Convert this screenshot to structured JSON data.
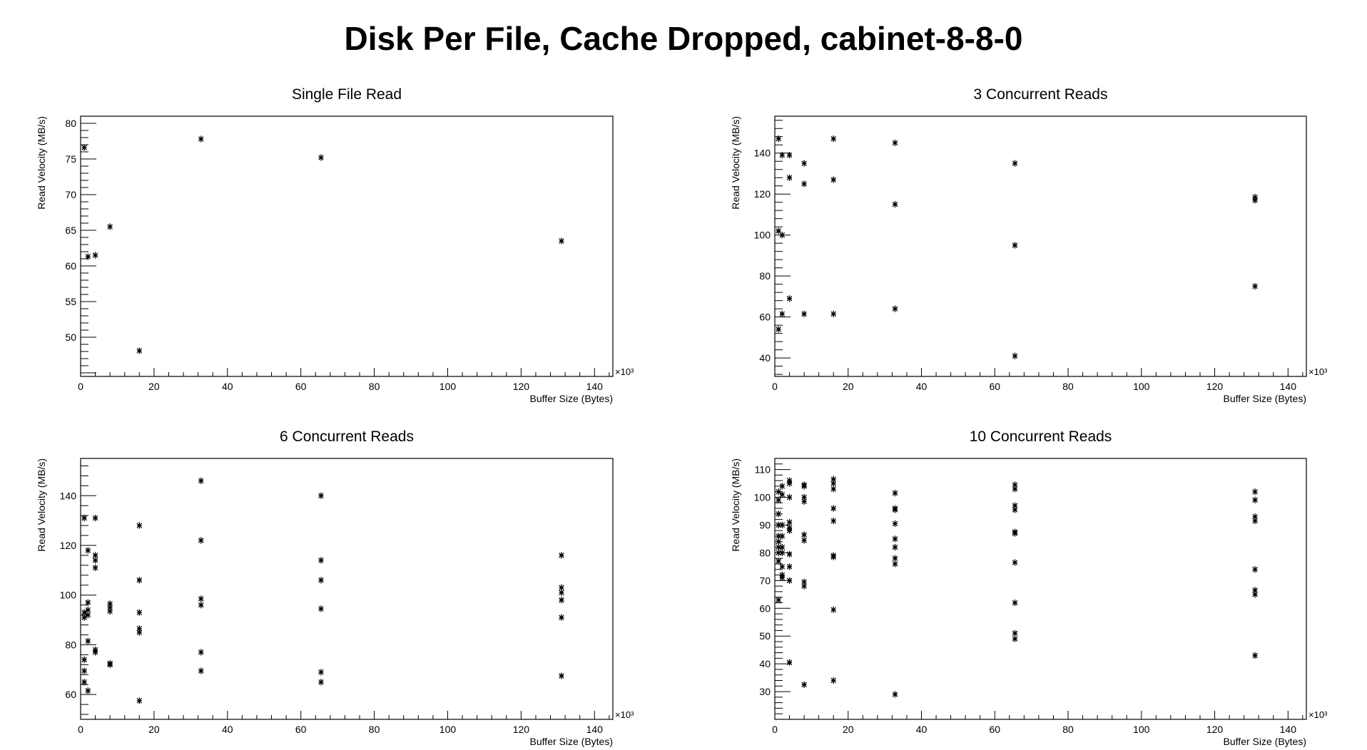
{
  "figure_title": "Disk Per File, Cache Dropped, cabinet-8-8-0",
  "chart_data": [
    {
      "type": "scatter",
      "title": "Single File Read",
      "xlabel": "Buffer Size (Bytes)",
      "ylabel": "Read Velocity (MB/s)",
      "x_exponent_label": "×10³",
      "xlim": [
        0,
        145
      ],
      "ylim": [
        44.5,
        81
      ],
      "xticks": [
        0,
        20,
        40,
        60,
        80,
        100,
        120,
        140
      ],
      "yticks": [
        50,
        55,
        60,
        65,
        70,
        75,
        80
      ],
      "marker": "asterisk",
      "points": [
        {
          "x": 1,
          "y": 76.6
        },
        {
          "x": 2,
          "y": 61.3
        },
        {
          "x": 4,
          "y": 61.5
        },
        {
          "x": 8,
          "y": 65.5
        },
        {
          "x": 16,
          "y": 48.1
        },
        {
          "x": 32.8,
          "y": 77.8
        },
        {
          "x": 65.5,
          "y": 75.2
        },
        {
          "x": 131,
          "y": 63.5
        }
      ]
    },
    {
      "type": "scatter",
      "title": "3 Concurrent Reads",
      "xlabel": "Buffer Size (Bytes)",
      "ylabel": "Read Velocity (MB/s)",
      "x_exponent_label": "×10³",
      "xlim": [
        0,
        145
      ],
      "ylim": [
        31,
        158
      ],
      "xticks": [
        0,
        20,
        40,
        60,
        80,
        100,
        120,
        140
      ],
      "yticks": [
        40,
        60,
        80,
        100,
        120,
        140
      ],
      "marker": "asterisk",
      "points": [
        {
          "x": 1,
          "y": 147
        },
        {
          "x": 1,
          "y": 102
        },
        {
          "x": 1,
          "y": 54
        },
        {
          "x": 2,
          "y": 139
        },
        {
          "x": 2,
          "y": 100
        },
        {
          "x": 2,
          "y": 61.5
        },
        {
          "x": 4,
          "y": 139
        },
        {
          "x": 4,
          "y": 128
        },
        {
          "x": 4,
          "y": 69
        },
        {
          "x": 8,
          "y": 135
        },
        {
          "x": 8,
          "y": 125
        },
        {
          "x": 8,
          "y": 61.5
        },
        {
          "x": 16,
          "y": 147
        },
        {
          "x": 16,
          "y": 127
        },
        {
          "x": 16,
          "y": 61.5
        },
        {
          "x": 32.8,
          "y": 145
        },
        {
          "x": 32.8,
          "y": 115
        },
        {
          "x": 32.8,
          "y": 64
        },
        {
          "x": 65.5,
          "y": 135
        },
        {
          "x": 65.5,
          "y": 95
        },
        {
          "x": 65.5,
          "y": 41
        },
        {
          "x": 131,
          "y": 118.5
        },
        {
          "x": 131,
          "y": 117
        },
        {
          "x": 131,
          "y": 75
        }
      ]
    },
    {
      "type": "scatter",
      "title": "6 Concurrent Reads",
      "xlabel": "Buffer Size (Bytes)",
      "ylabel": "Read Velocity (MB/s)",
      "x_exponent_label": "×10³",
      "xlim": [
        0,
        145
      ],
      "ylim": [
        50,
        155
      ],
      "xticks": [
        0,
        20,
        40,
        60,
        80,
        100,
        120,
        140
      ],
      "yticks": [
        60,
        80,
        100,
        120,
        140
      ],
      "marker": "asterisk",
      "points": [
        {
          "x": 1,
          "y": 131
        },
        {
          "x": 1,
          "y": 93
        },
        {
          "x": 1,
          "y": 91
        },
        {
          "x": 1,
          "y": 74
        },
        {
          "x": 1,
          "y": 69.5
        },
        {
          "x": 1,
          "y": 65
        },
        {
          "x": 2,
          "y": 118
        },
        {
          "x": 2,
          "y": 97
        },
        {
          "x": 2,
          "y": 94
        },
        {
          "x": 2,
          "y": 92
        },
        {
          "x": 2,
          "y": 81.5
        },
        {
          "x": 2,
          "y": 61.5
        },
        {
          "x": 4,
          "y": 131
        },
        {
          "x": 4,
          "y": 116
        },
        {
          "x": 4,
          "y": 114
        },
        {
          "x": 4,
          "y": 111
        },
        {
          "x": 4,
          "y": 78
        },
        {
          "x": 4,
          "y": 77
        },
        {
          "x": 8,
          "y": 96.5
        },
        {
          "x": 8,
          "y": 95
        },
        {
          "x": 8,
          "y": 93.5
        },
        {
          "x": 8,
          "y": 72.5
        },
        {
          "x": 8,
          "y": 72
        },
        {
          "x": 16,
          "y": 128
        },
        {
          "x": 16,
          "y": 106
        },
        {
          "x": 16,
          "y": 93
        },
        {
          "x": 16,
          "y": 86.5
        },
        {
          "x": 16,
          "y": 85
        },
        {
          "x": 16,
          "y": 57.5
        },
        {
          "x": 32.8,
          "y": 146
        },
        {
          "x": 32.8,
          "y": 122
        },
        {
          "x": 32.8,
          "y": 98.5
        },
        {
          "x": 32.8,
          "y": 96
        },
        {
          "x": 32.8,
          "y": 77
        },
        {
          "x": 32.8,
          "y": 69.5
        },
        {
          "x": 65.5,
          "y": 140
        },
        {
          "x": 65.5,
          "y": 114
        },
        {
          "x": 65.5,
          "y": 106
        },
        {
          "x": 65.5,
          "y": 94.5
        },
        {
          "x": 65.5,
          "y": 69
        },
        {
          "x": 65.5,
          "y": 65
        },
        {
          "x": 131,
          "y": 116
        },
        {
          "x": 131,
          "y": 103
        },
        {
          "x": 131,
          "y": 101
        },
        {
          "x": 131,
          "y": 98
        },
        {
          "x": 131,
          "y": 91
        },
        {
          "x": 131,
          "y": 67.5
        }
      ]
    },
    {
      "type": "scatter",
      "title": "10 Concurrent Reads",
      "xlabel": "Buffer Size (Bytes)",
      "ylabel": "Read Velocity (MB/s)",
      "x_exponent_label": "×10³",
      "xlim": [
        0,
        145
      ],
      "ylim": [
        20,
        114
      ],
      "xticks": [
        0,
        20,
        40,
        60,
        80,
        100,
        120,
        140
      ],
      "yticks": [
        30,
        40,
        50,
        60,
        70,
        80,
        90,
        100,
        110
      ],
      "marker": "asterisk",
      "points": [
        {
          "x": 1,
          "y": 102
        },
        {
          "x": 1,
          "y": 99
        },
        {
          "x": 1,
          "y": 94
        },
        {
          "x": 1,
          "y": 90
        },
        {
          "x": 1,
          "y": 86
        },
        {
          "x": 1,
          "y": 84
        },
        {
          "x": 1,
          "y": 82
        },
        {
          "x": 1,
          "y": 80
        },
        {
          "x": 1,
          "y": 77
        },
        {
          "x": 1,
          "y": 63
        },
        {
          "x": 2,
          "y": 104
        },
        {
          "x": 2,
          "y": 101
        },
        {
          "x": 2,
          "y": 90
        },
        {
          "x": 2,
          "y": 86
        },
        {
          "x": 2,
          "y": 82
        },
        {
          "x": 2,
          "y": 80
        },
        {
          "x": 2,
          "y": 75
        },
        {
          "x": 2,
          "y": 72
        },
        {
          "x": 2,
          "y": 71
        },
        {
          "x": 4,
          "y": 106
        },
        {
          "x": 4,
          "y": 105
        },
        {
          "x": 4,
          "y": 100
        },
        {
          "x": 4,
          "y": 91
        },
        {
          "x": 4,
          "y": 89
        },
        {
          "x": 4,
          "y": 88
        },
        {
          "x": 4,
          "y": 79.5
        },
        {
          "x": 4,
          "y": 75
        },
        {
          "x": 4,
          "y": 70
        },
        {
          "x": 4,
          "y": 40.5
        },
        {
          "x": 8,
          "y": 104.5
        },
        {
          "x": 8,
          "y": 104
        },
        {
          "x": 8,
          "y": 100
        },
        {
          "x": 8,
          "y": 98.5
        },
        {
          "x": 8,
          "y": 86.5
        },
        {
          "x": 8,
          "y": 84.5
        },
        {
          "x": 8,
          "y": 69.5
        },
        {
          "x": 8,
          "y": 68
        },
        {
          "x": 8,
          "y": 32.5
        },
        {
          "x": 16,
          "y": 106.5
        },
        {
          "x": 16,
          "y": 105
        },
        {
          "x": 16,
          "y": 103
        },
        {
          "x": 16,
          "y": 96
        },
        {
          "x": 16,
          "y": 91.5
        },
        {
          "x": 16,
          "y": 79
        },
        {
          "x": 16,
          "y": 78.5
        },
        {
          "x": 16,
          "y": 59.5
        },
        {
          "x": 16,
          "y": 34
        },
        {
          "x": 32.8,
          "y": 101.5
        },
        {
          "x": 32.8,
          "y": 96
        },
        {
          "x": 32.8,
          "y": 95.5
        },
        {
          "x": 32.8,
          "y": 90.5
        },
        {
          "x": 32.8,
          "y": 85
        },
        {
          "x": 32.8,
          "y": 82
        },
        {
          "x": 32.8,
          "y": 78
        },
        {
          "x": 32.8,
          "y": 76
        },
        {
          "x": 32.8,
          "y": 29
        },
        {
          "x": 65.5,
          "y": 104.5
        },
        {
          "x": 65.5,
          "y": 103
        },
        {
          "x": 65.5,
          "y": 97
        },
        {
          "x": 65.5,
          "y": 95.5
        },
        {
          "x": 65.5,
          "y": 87.5
        },
        {
          "x": 65.5,
          "y": 87
        },
        {
          "x": 65.5,
          "y": 76.5
        },
        {
          "x": 65.5,
          "y": 62
        },
        {
          "x": 65.5,
          "y": 51
        },
        {
          "x": 65.5,
          "y": 49
        },
        {
          "x": 131,
          "y": 102
        },
        {
          "x": 131,
          "y": 99
        },
        {
          "x": 131,
          "y": 93
        },
        {
          "x": 131,
          "y": 91.5
        },
        {
          "x": 131,
          "y": 74
        },
        {
          "x": 131,
          "y": 66.5
        },
        {
          "x": 131,
          "y": 65
        },
        {
          "x": 131,
          "y": 43
        }
      ]
    }
  ]
}
